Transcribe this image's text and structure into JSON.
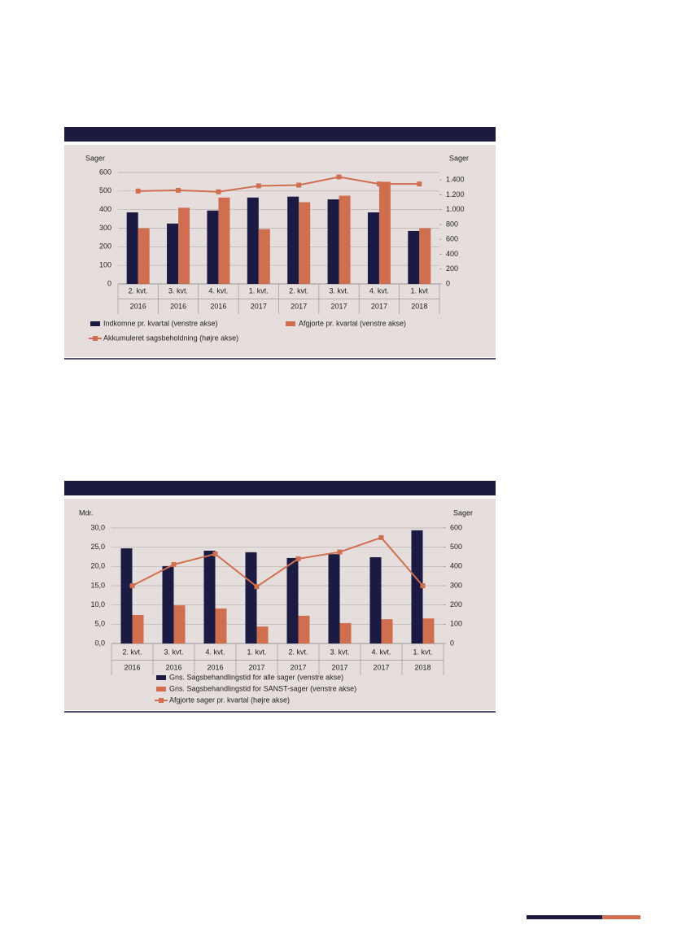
{
  "chart_data": [
    {
      "type": "bar",
      "y_label": "Sager",
      "y2_label": "Sager",
      "categories": [
        [
          "2. kvt.",
          "2016"
        ],
        [
          "3. kvt.",
          "2016"
        ],
        [
          "4. kvt.",
          "2016"
        ],
        [
          "1. kvt.",
          "2017"
        ],
        [
          "2. kvt.",
          "2017"
        ],
        [
          "3. kvt.",
          "2017"
        ],
        [
          "4. kvt.",
          "2017"
        ],
        [
          "1. kvt",
          "2018"
        ]
      ],
      "ylim": [
        0,
        600
      ],
      "yticks": [
        0,
        100,
        200,
        300,
        400,
        500,
        600
      ],
      "y2lim": [
        0,
        1500
      ],
      "y2ticks": [
        0,
        200,
        400,
        600,
        800,
        {
          "value": 1000,
          "label": "1.000"
        },
        {
          "value": 1200,
          "label": "1.200"
        },
        {
          "value": 1400,
          "label": "1.400"
        }
      ],
      "grid": true,
      "series": [
        {
          "name": "Indkomne pr. kvartal (venstre akse)",
          "type": "bar",
          "color": "#1b1a42",
          "values": [
            385,
            325,
            395,
            465,
            470,
            455,
            385,
            285
          ]
        },
        {
          "name": "Afgjorte pr. kvartal (venstre akse)",
          "type": "bar",
          "color": "#d06f50",
          "values": [
            300,
            410,
            465,
            295,
            440,
            475,
            550,
            300
          ]
        },
        {
          "name": "Akkumuleret sagsbeholdning (højre akse)",
          "type": "line",
          "axis": "y2",
          "color": "#d06f50",
          "values": [
            1250,
            1260,
            1240,
            1320,
            1330,
            1440,
            1345,
            1345
          ]
        }
      ]
    },
    {
      "type": "bar",
      "y_label": "Mdr.",
      "y2_label": "Sager",
      "categories": [
        [
          "2. kvt.",
          "2016"
        ],
        [
          "3. kvt.",
          "2016"
        ],
        [
          "4. kvt.",
          "2016"
        ],
        [
          "1. kvt.",
          "2017"
        ],
        [
          "2. kvt.",
          "2017"
        ],
        [
          "3. kvt.",
          "2017"
        ],
        [
          "4. kvt.",
          "2017"
        ],
        [
          "1. kvt.",
          "2018"
        ]
      ],
      "ylim": [
        0,
        30
      ],
      "yticks": [
        {
          "value": 0,
          "label": "0,0"
        },
        {
          "value": 5,
          "label": "5,0"
        },
        {
          "value": 10,
          "label": "10,0"
        },
        {
          "value": 15,
          "label": "15,0"
        },
        {
          "value": 20,
          "label": "20,0"
        },
        {
          "value": 25,
          "label": "25,0"
        },
        {
          "value": 30,
          "label": "30,0"
        }
      ],
      "y2lim": [
        0,
        600
      ],
      "y2ticks": [
        0,
        100,
        200,
        300,
        400,
        500,
        600
      ],
      "grid": true,
      "series": [
        {
          "name": "Gns. Sagsbehandlingstid for alle sager (venstre akse)",
          "type": "bar",
          "color": "#1b1a42",
          "values": [
            24.7,
            20.1,
            24.1,
            23.7,
            22.2,
            23.2,
            22.4,
            29.4
          ]
        },
        {
          "name": "Gns. Sagsbehandlingstid for SANST-sager (venstre akse)",
          "type": "bar",
          "color": "#d06f50",
          "values": [
            7.4,
            9.9,
            9.1,
            4.4,
            7.2,
            5.3,
            6.3,
            6.5
          ]
        },
        {
          "name": "Afgjorte sager pr. kvartal (højre akse)",
          "type": "line",
          "axis": "y2",
          "color": "#d06f50",
          "values": [
            300,
            410,
            465,
            295,
            440,
            475,
            550,
            300
          ]
        }
      ]
    }
  ]
}
